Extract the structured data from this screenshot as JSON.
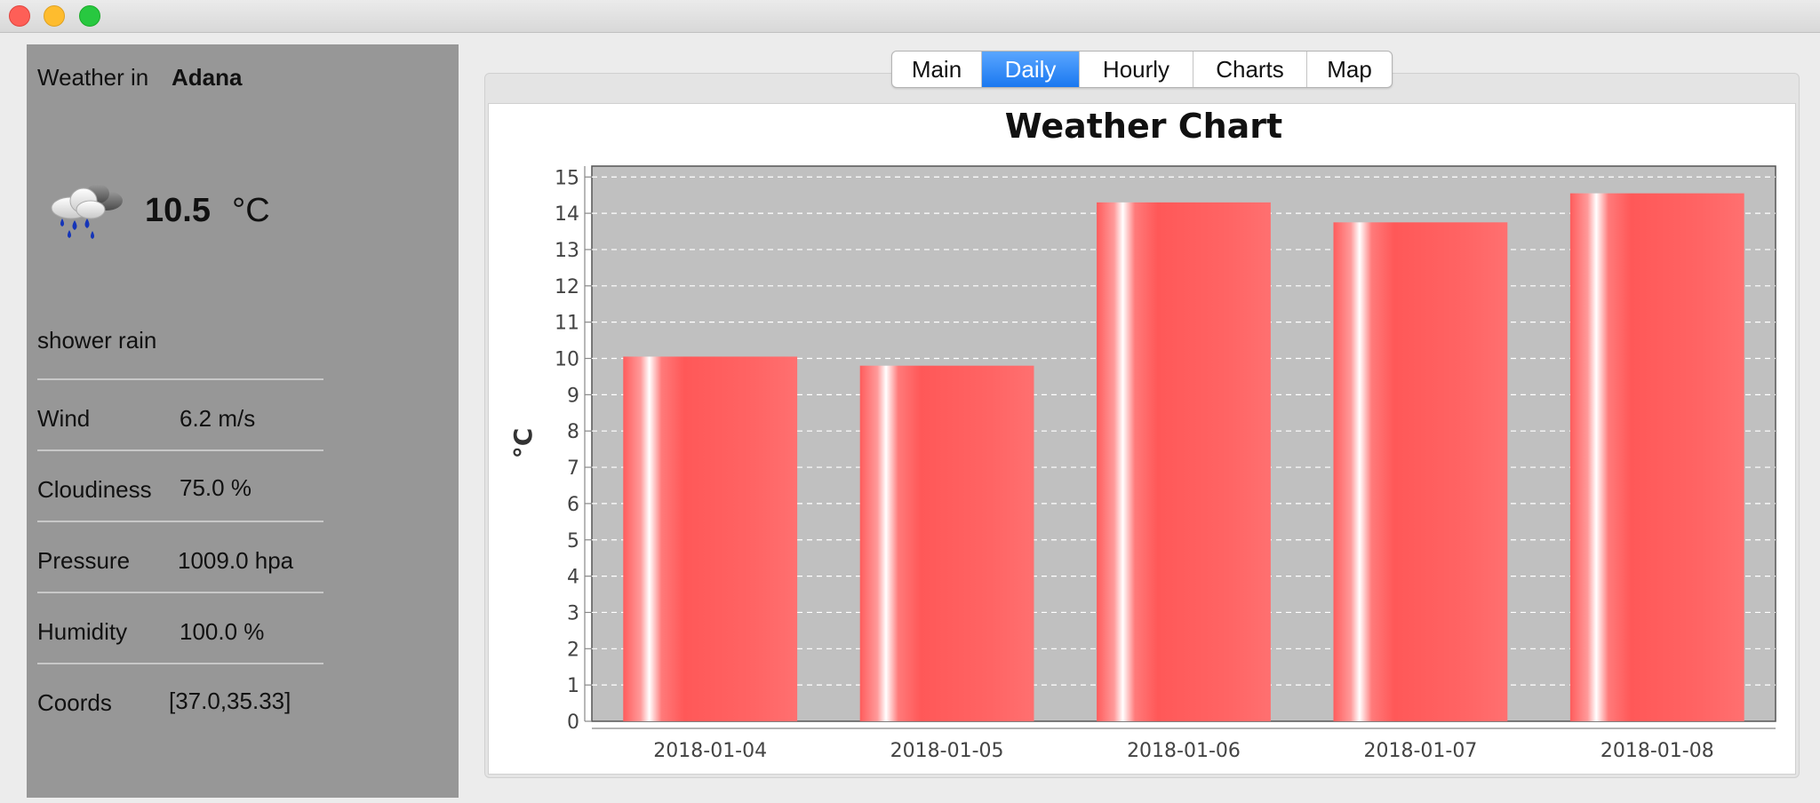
{
  "window": {
    "title": ""
  },
  "sidebar": {
    "weather_in_label": "Weather in",
    "city": "Adana",
    "weather_icon": "shower-rain-cloud-icon",
    "temperature": "10.5",
    "temperature_unit": "°C",
    "description": "shower rain",
    "details": [
      {
        "label": "Wind",
        "value": "6.2 m/s"
      },
      {
        "label": "Cloudiness",
        "value": "75.0 %"
      },
      {
        "label": "Pressure",
        "value": "1009.0 hpa"
      },
      {
        "label": "Humidity",
        "value": "100.0 %"
      },
      {
        "label": "Coords",
        "value": "[37.0,35.33]"
      }
    ]
  },
  "tabs": [
    {
      "label": "Main",
      "active": false
    },
    {
      "label": "Daily",
      "active": true
    },
    {
      "label": "Hourly",
      "active": false
    },
    {
      "label": "Charts",
      "active": false
    },
    {
      "label": "Map",
      "active": false
    }
  ],
  "colors": {
    "sidebar_bg": "#979797",
    "plot_bg": "#c0c0c0",
    "bar": "#ff5c5c",
    "tab_active": "#1a78f0"
  },
  "chart_data": {
    "type": "bar",
    "title": "Weather Chart",
    "xlabel": "",
    "ylabel": "°C",
    "categories": [
      "2018-01-04",
      "2018-01-05",
      "2018-01-06",
      "2018-01-07",
      "2018-01-08"
    ],
    "values": [
      10.05,
      9.8,
      14.3,
      13.75,
      14.55
    ],
    "ylim": [
      0,
      15.3
    ],
    "yticks": [
      "0",
      "1",
      "2",
      "3",
      "4",
      "5",
      "6",
      "7",
      "8",
      "9",
      "10",
      "11",
      "12",
      "13",
      "14",
      "15"
    ],
    "grid": true,
    "legend": "none"
  }
}
